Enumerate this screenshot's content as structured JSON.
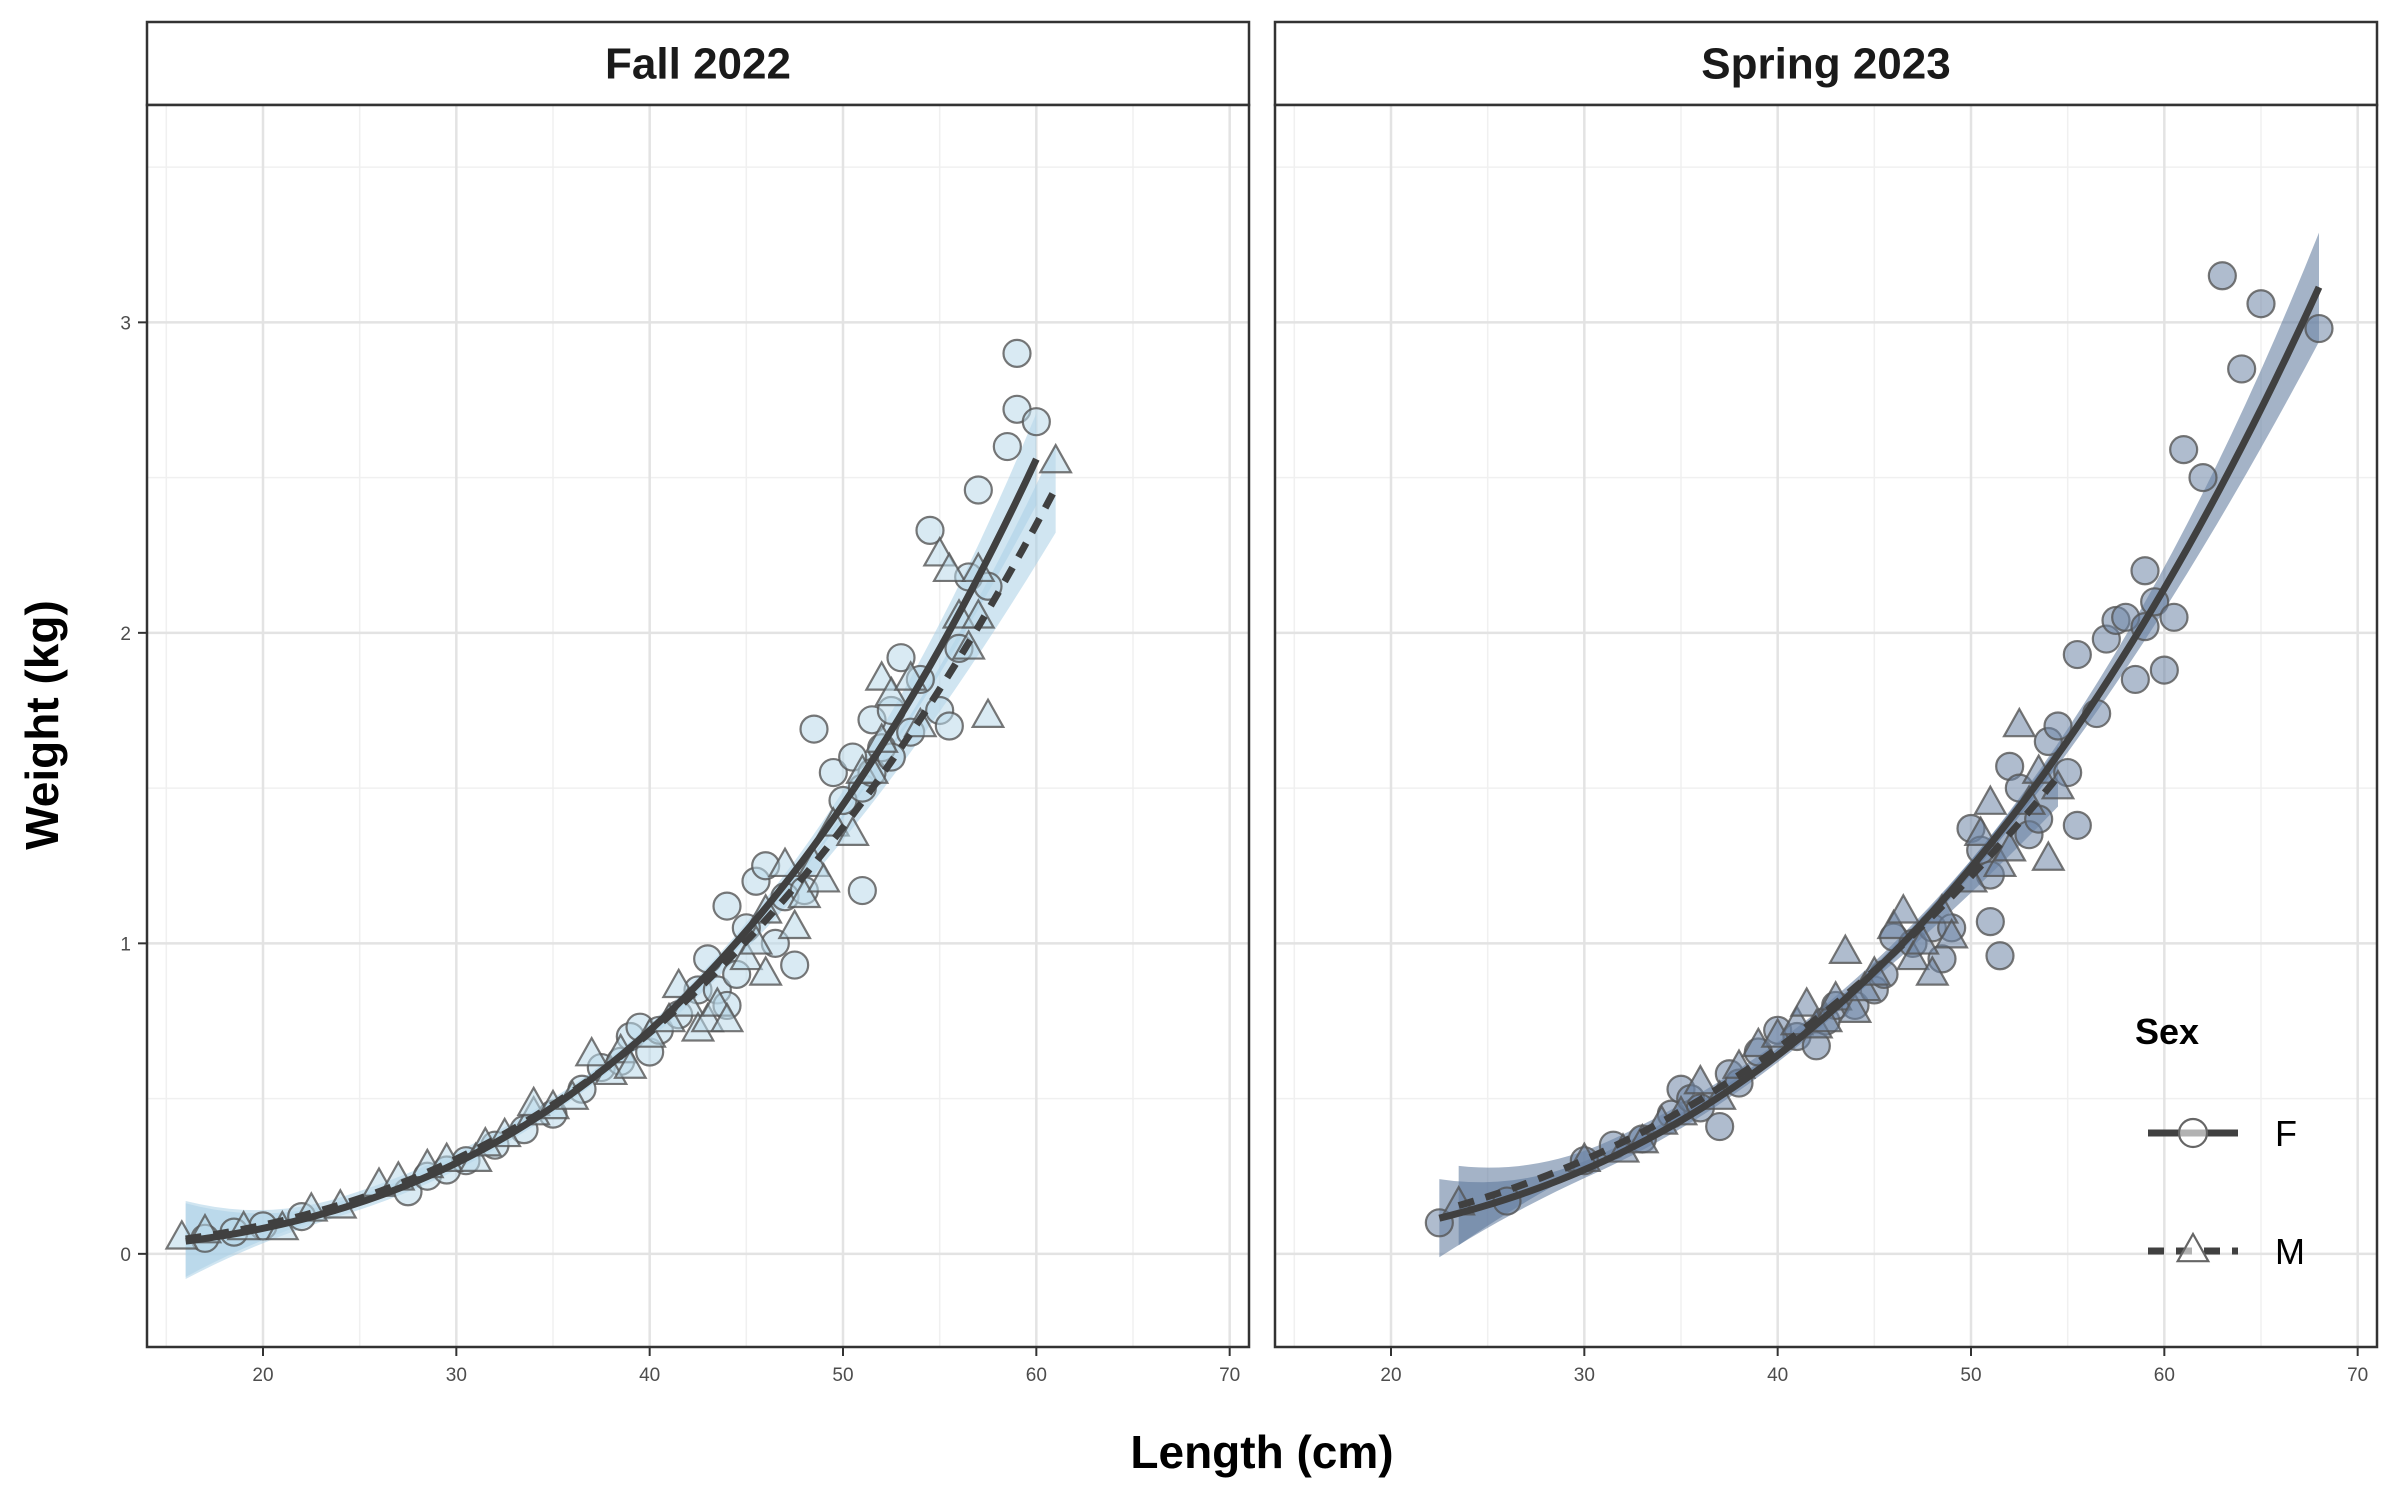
{
  "chart_data": {
    "type": "scatter",
    "xlabel": "Length (cm)",
    "ylabel": "Weight (kg)",
    "xlim": [
      14,
      71
    ],
    "ylim": [
      -0.3,
      3.7
    ],
    "x_ticks": [
      20,
      30,
      40,
      50,
      60,
      70
    ],
    "y_ticks": [
      0,
      1,
      2,
      3
    ],
    "grid": true,
    "legend": {
      "title": "Sex",
      "placement": "bottom-right",
      "entries": [
        {
          "label": "F",
          "shape": "circle",
          "line": "solid"
        },
        {
          "label": "M",
          "shape": "triangle",
          "line": "dashed"
        }
      ]
    },
    "fit": "power (W = a*L^b) with confidence band",
    "panels": [
      {
        "title": "Fall 2022",
        "color": "#b9d8ea",
        "band_color": "#a9cfe6",
        "series": [
          {
            "name": "F",
            "points": [
              [
                17,
                0.05
              ],
              [
                18.5,
                0.07
              ],
              [
                20,
                0.09
              ],
              [
                22,
                0.12
              ],
              [
                27.5,
                0.2
              ],
              [
                28.5,
                0.25
              ],
              [
                29.5,
                0.27
              ],
              [
                30.5,
                0.3
              ],
              [
                32,
                0.35
              ],
              [
                33.5,
                0.4
              ],
              [
                35,
                0.45
              ],
              [
                36.5,
                0.53
              ],
              [
                37.5,
                0.6
              ],
              [
                38.5,
                0.62
              ],
              [
                39,
                0.7
              ],
              [
                39.5,
                0.73
              ],
              [
                40,
                0.65
              ],
              [
                40.5,
                0.72
              ],
              [
                41.5,
                0.77
              ],
              [
                42.5,
                0.85
              ],
              [
                43,
                0.95
              ],
              [
                43.5,
                0.85
              ],
              [
                44,
                1.12
              ],
              [
                44,
                0.8
              ],
              [
                44.5,
                0.9
              ],
              [
                45,
                1.05
              ],
              [
                45.5,
                1.2
              ],
              [
                46,
                1.25
              ],
              [
                46.5,
                1.0
              ],
              [
                47,
                1.15
              ],
              [
                47.5,
                0.93
              ],
              [
                48,
                1.17
              ],
              [
                48.5,
                1.69
              ],
              [
                49.5,
                1.55
              ],
              [
                50,
                1.46
              ],
              [
                50.5,
                1.6
              ],
              [
                51,
                1.17
              ],
              [
                51,
                1.5
              ],
              [
                51.5,
                1.55
              ],
              [
                51.5,
                1.72
              ],
              [
                52,
                1.63
              ],
              [
                52.5,
                1.75
              ],
              [
                52.5,
                1.6
              ],
              [
                53,
                1.92
              ],
              [
                53.5,
                1.68
              ],
              [
                54,
                1.85
              ],
              [
                54.5,
                2.33
              ],
              [
                55,
                1.75
              ],
              [
                55.5,
                1.7
              ],
              [
                56,
                1.95
              ],
              [
                56.5,
                2.18
              ],
              [
                57,
                2.46
              ],
              [
                57.5,
                2.15
              ],
              [
                58.5,
                2.6
              ],
              [
                59,
                2.9
              ],
              [
                59,
                2.72
              ],
              [
                60,
                2.68
              ]
            ],
            "fit_range": [
              16,
              60
            ]
          },
          {
            "name": "M",
            "points": [
              [
                15.8,
                0.05
              ],
              [
                17,
                0.07
              ],
              [
                19,
                0.08
              ],
              [
                21,
                0.08
              ],
              [
                22.5,
                0.14
              ],
              [
                24,
                0.15
              ],
              [
                26,
                0.22
              ],
              [
                27,
                0.24
              ],
              [
                28.5,
                0.28
              ],
              [
                29.5,
                0.3
              ],
              [
                31,
                0.3
              ],
              [
                31.5,
                0.35
              ],
              [
                32.5,
                0.38
              ],
              [
                34,
                0.45
              ],
              [
                34,
                0.48
              ],
              [
                35,
                0.47
              ],
              [
                36,
                0.5
              ],
              [
                37,
                0.64
              ],
              [
                38,
                0.58
              ],
              [
                38.5,
                0.65
              ],
              [
                39,
                0.6
              ],
              [
                40,
                0.7
              ],
              [
                41,
                0.75
              ],
              [
                41.5,
                0.86
              ],
              [
                42,
                0.8
              ],
              [
                42.5,
                0.72
              ],
              [
                43,
                0.75
              ],
              [
                43.5,
                0.8
              ],
              [
                44,
                0.75
              ],
              [
                45,
                0.95
              ],
              [
                45.5,
                1.0
              ],
              [
                46,
                1.1
              ],
              [
                46,
                0.9
              ],
              [
                47,
                1.25
              ],
              [
                47.5,
                1.05
              ],
              [
                48,
                1.15
              ],
              [
                48.5,
                1.25
              ],
              [
                49,
                1.2
              ],
              [
                49.5,
                1.38
              ],
              [
                50.5,
                1.35
              ],
              [
                51,
                1.55
              ],
              [
                51.5,
                1.55
              ],
              [
                52,
                1.85
              ],
              [
                52,
                1.65
              ],
              [
                52.5,
                1.8
              ],
              [
                53.5,
                1.85
              ],
              [
                54,
                1.7
              ],
              [
                55,
                2.25
              ],
              [
                55.5,
                2.2
              ],
              [
                56,
                2.05
              ],
              [
                56.5,
                1.95
              ],
              [
                57,
                2.2
              ],
              [
                57,
                2.05
              ],
              [
                57.5,
                1.73
              ],
              [
                61,
                2.55
              ]
            ],
            "fit_range": [
              16,
              61
            ]
          }
        ]
      },
      {
        "title": "Spring 2023",
        "color": "#6d85a6",
        "band_color": "#5a7499",
        "series": [
          {
            "name": "F",
            "points": [
              [
                22.5,
                0.1
              ],
              [
                26,
                0.17
              ],
              [
                30,
                0.3
              ],
              [
                31.5,
                0.35
              ],
              [
                33,
                0.37
              ],
              [
                34.5,
                0.45
              ],
              [
                35,
                0.53
              ],
              [
                35.5,
                0.5
              ],
              [
                36,
                0.47
              ],
              [
                37,
                0.41
              ],
              [
                37.5,
                0.58
              ],
              [
                38,
                0.55
              ],
              [
                39,
                0.65
              ],
              [
                40,
                0.72
              ],
              [
                41,
                0.7
              ],
              [
                42,
                0.67
              ],
              [
                42.5,
                0.75
              ],
              [
                43,
                0.8
              ],
              [
                44,
                0.8
              ],
              [
                45,
                0.85
              ],
              [
                45.5,
                0.9
              ],
              [
                46,
                1.02
              ],
              [
                47,
                1.0
              ],
              [
                48,
                1.05
              ],
              [
                48.5,
                0.95
              ],
              [
                49,
                1.05
              ],
              [
                50,
                1.37
              ],
              [
                50.5,
                1.3
              ],
              [
                51,
                1.07
              ],
              [
                51,
                1.22
              ],
              [
                51.5,
                0.96
              ],
              [
                52,
                1.57
              ],
              [
                52.5,
                1.5
              ],
              [
                53,
                1.35
              ],
              [
                53.5,
                1.4
              ],
              [
                54,
                1.65
              ],
              [
                54.5,
                1.7
              ],
              [
                55,
                1.55
              ],
              [
                55.5,
                1.38
              ],
              [
                55.5,
                1.93
              ],
              [
                56.5,
                1.74
              ],
              [
                57,
                1.98
              ],
              [
                57.5,
                2.04
              ],
              [
                58,
                2.05
              ],
              [
                58.5,
                1.85
              ],
              [
                59,
                2.2
              ],
              [
                59,
                2.02
              ],
              [
                59.5,
                2.1
              ],
              [
                60,
                1.88
              ],
              [
                60.5,
                2.05
              ],
              [
                61,
                2.59
              ],
              [
                62,
                2.5
              ],
              [
                63,
                3.15
              ],
              [
                64,
                2.85
              ],
              [
                65,
                3.06
              ],
              [
                68,
                2.98
              ]
            ],
            "fit_range": [
              22.5,
              68
            ]
          },
          {
            "name": "M",
            "points": [
              [
                23.5,
                0.16
              ],
              [
                30,
                0.3
              ],
              [
                32,
                0.33
              ],
              [
                33,
                0.36
              ],
              [
                34,
                0.42
              ],
              [
                35,
                0.45
              ],
              [
                36,
                0.55
              ],
              [
                37,
                0.5
              ],
              [
                38,
                0.6
              ],
              [
                39,
                0.67
              ],
              [
                40,
                0.7
              ],
              [
                41,
                0.74
              ],
              [
                41.5,
                0.8
              ],
              [
                42,
                0.73
              ],
              [
                42.5,
                0.75
              ],
              [
                43,
                0.82
              ],
              [
                43.5,
                0.97
              ],
              [
                44,
                0.78
              ],
              [
                44.5,
                0.85
              ],
              [
                45,
                0.9
              ],
              [
                46,
                1.05
              ],
              [
                46.5,
                1.1
              ],
              [
                47,
                0.95
              ],
              [
                47.5,
                1.0
              ],
              [
                48,
                0.9
              ],
              [
                48.5,
                1.1
              ],
              [
                49,
                1.02
              ],
              [
                50,
                1.2
              ],
              [
                50.5,
                1.35
              ],
              [
                51,
                1.45
              ],
              [
                51.5,
                1.25
              ],
              [
                52,
                1.3
              ],
              [
                52.5,
                1.7
              ],
              [
                53,
                1.45
              ],
              [
                53.5,
                1.55
              ],
              [
                54,
                1.27
              ],
              [
                54.5,
                1.5
              ]
            ],
            "fit_range": [
              23.5,
              54.5
            ]
          }
        ]
      }
    ]
  }
}
